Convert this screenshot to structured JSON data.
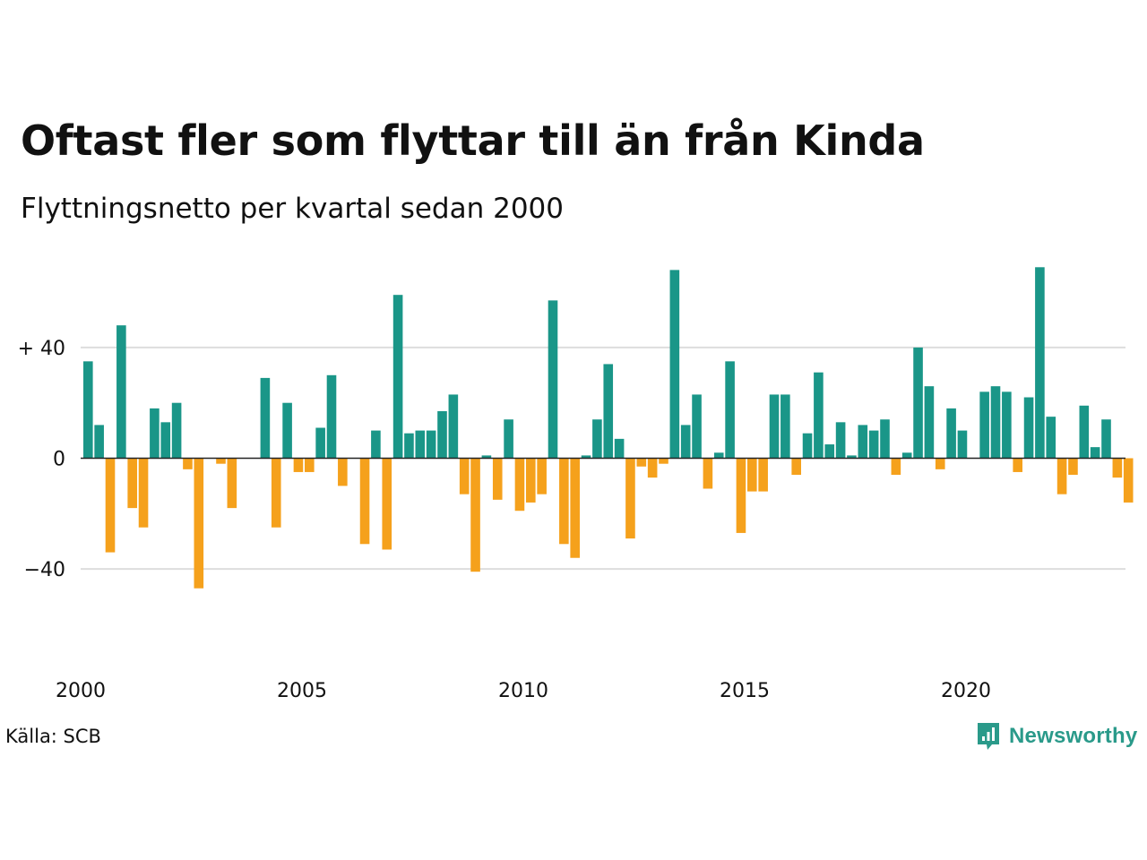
{
  "header": {
    "title": "Oftast fler som flyttar till än från Kinda",
    "subtitle": "Flyttningsnetto per kvartal sedan 2000"
  },
  "footer": {
    "source": "Källa: SCB",
    "brand": "Newsworthy"
  },
  "colors": {
    "positive": "#1a9688",
    "negative": "#f5a11c",
    "grid": "#dddddd",
    "zero_line": "#222222",
    "brand": "#2a9a8a"
  },
  "chart_data": {
    "type": "bar",
    "xlabel": "",
    "ylabel": "",
    "ylim": [
      -62,
      70
    ],
    "grid": true,
    "x_start": "2000 Q1",
    "y_ticks": [
      {
        "value": 40,
        "label": "+ 40"
      },
      {
        "value": 0,
        "label": "0"
      },
      {
        "value": -40,
        "label": "−40"
      }
    ],
    "x_ticks": [
      {
        "index": 0,
        "label": "2000"
      },
      {
        "index": 20,
        "label": "2005"
      },
      {
        "index": 40,
        "label": "2010"
      },
      {
        "index": 60,
        "label": "2015"
      },
      {
        "index": 80,
        "label": "2020"
      }
    ],
    "values": [
      35,
      12,
      -34,
      48,
      -18,
      -25,
      18,
      13,
      20,
      -4,
      -47,
      0,
      -2,
      -18,
      0,
      0,
      29,
      -25,
      20,
      -5,
      -5,
      11,
      30,
      -10,
      0,
      -31,
      10,
      -33,
      59,
      9,
      10,
      10,
      17,
      23,
      -13,
      -41,
      1,
      -15,
      14,
      -19,
      -16,
      -13,
      57,
      -31,
      -36,
      1,
      14,
      34,
      7,
      -29,
      -3,
      -7,
      -2,
      68,
      12,
      23,
      -11,
      2,
      35,
      -27,
      -12,
      -12,
      23,
      23,
      -6,
      9,
      31,
      5,
      13,
      1,
      12,
      10,
      14,
      -6,
      2,
      40,
      26,
      -4,
      18,
      10,
      0,
      24,
      26,
      24,
      -5,
      22,
      69,
      15,
      -13,
      -6,
      19,
      4,
      14,
      -7,
      -16
    ]
  }
}
